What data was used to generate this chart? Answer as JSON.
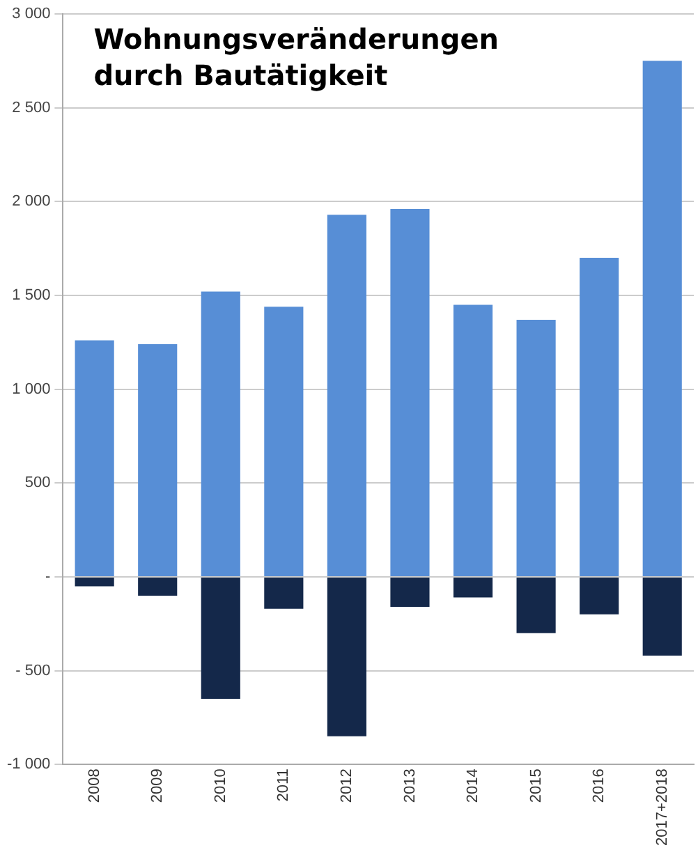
{
  "chart_data": {
    "type": "bar",
    "title": "Wohnungsveränderungen durch Bautätigkeit",
    "stacked": true,
    "categories": [
      "2008",
      "2009",
      "2010",
      "2011",
      "2012",
      "2013",
      "2014",
      "2015",
      "2016",
      "2017+2018"
    ],
    "series": [
      {
        "color": "#578ed6",
        "values": [
          1260,
          1240,
          1520,
          1440,
          1930,
          1960,
          1450,
          1370,
          1700,
          2750
        ]
      },
      {
        "color": "#14284a",
        "values": [
          -50,
          -100,
          -650,
          -170,
          -850,
          -160,
          -110,
          -300,
          -200,
          -420
        ]
      }
    ],
    "ylim": [
      -1000,
      3000
    ],
    "yticks": [
      {
        "value": 3000,
        "label": "3 000"
      },
      {
        "value": 2500,
        "label": "2 500"
      },
      {
        "value": 2000,
        "label": "2 000"
      },
      {
        "value": 1500,
        "label": "1 500"
      },
      {
        "value": 1000,
        "label": "1 000"
      },
      500,
      {
        "value": 0,
        "label": "-"
      },
      {
        "value": -500,
        "label": "- 500"
      },
      {
        "value": -1000,
        "label": "-1 000"
      }
    ],
    "grid": "y",
    "legend": false
  }
}
